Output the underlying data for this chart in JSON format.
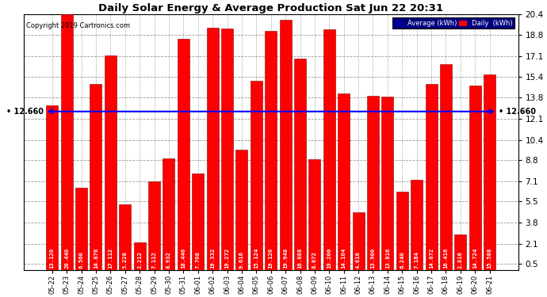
{
  "title": "Daily Solar Energy & Average Production Sat Jun 22 20:31",
  "copyright": "Copyright 2019 Cartronics.com",
  "categories": [
    "05-22",
    "05-23",
    "05-24",
    "05-25",
    "05-26",
    "05-27",
    "05-28",
    "05-29",
    "05-30",
    "05-31",
    "06-01",
    "06-02",
    "06-03",
    "06-04",
    "06-05",
    "06-06",
    "06-07",
    "06-08",
    "06-09",
    "06-10",
    "06-11",
    "06-12",
    "06-13",
    "06-14",
    "06-15",
    "06-16",
    "06-17",
    "06-18",
    "06-19",
    "06-20",
    "06-21"
  ],
  "values": [
    13.12,
    20.44,
    6.56,
    14.876,
    17.112,
    5.228,
    2.212,
    7.112,
    8.932,
    18.44,
    7.708,
    19.332,
    19.272,
    9.616,
    15.124,
    19.12,
    19.948,
    16.888,
    8.872,
    19.2,
    14.104,
    4.616,
    13.9,
    13.816,
    6.24,
    7.184,
    14.872,
    16.416,
    2.816,
    14.724,
    15.588
  ],
  "average": 12.66,
  "bar_color": "#ff0000",
  "avg_line_color": "#0000ff",
  "bar_edge_color": "#880000",
  "background_color": "#ffffff",
  "grid_color": "#999999",
  "ylim": [
    0,
    20.4
  ],
  "yticks": [
    0.5,
    2.1,
    3.8,
    5.5,
    7.1,
    8.8,
    10.4,
    12.1,
    13.8,
    15.4,
    17.1,
    18.8,
    20.4
  ],
  "legend_avg_color": "#000099",
  "legend_daily_color": "#ff0000",
  "avg_label": "Average (kWh)",
  "daily_label": "Daily  (kWh)",
  "avg_text": "12.660"
}
